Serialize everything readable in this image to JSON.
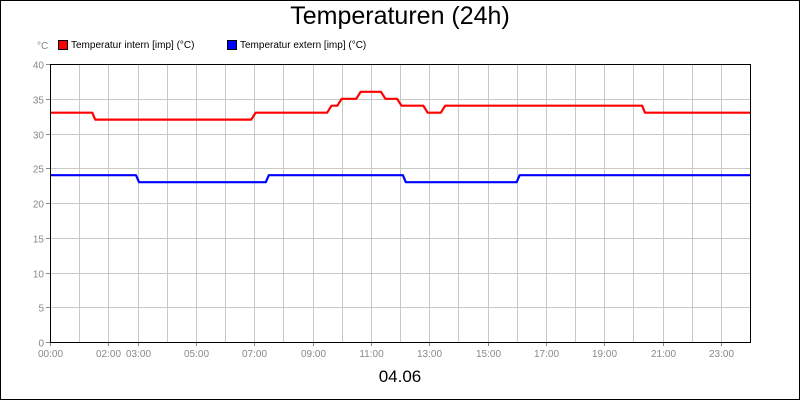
{
  "chart_data": {
    "type": "line",
    "title": "Temperaturen (24h)",
    "y_unit": "°C",
    "date_label": "04.06",
    "ylim": [
      0,
      40
    ],
    "yticks": [
      0,
      5,
      10,
      15,
      20,
      25,
      30,
      35,
      40
    ],
    "xlim_hours": [
      0,
      24
    ],
    "xtick_hours": [
      0,
      2,
      3,
      5,
      7,
      9,
      11,
      13,
      15,
      17,
      19,
      21,
      23
    ],
    "xtick_labels": [
      "00:00",
      "02:00",
      "03:00",
      "05:00",
      "07:00",
      "09:00",
      "11:00",
      "13:00",
      "15:00",
      "17:00",
      "19:00",
      "21:00",
      "23:00"
    ],
    "grid": true,
    "legend_position": "top-left",
    "series": [
      {
        "name": "Temperatur intern [imp] (°C)",
        "color": "#ff0000",
        "x_hours": [
          0,
          1.45,
          1.55,
          6.9,
          7.05,
          9.5,
          9.65,
          9.85,
          10.0,
          10.5,
          10.65,
          11.35,
          11.5,
          11.9,
          12.05,
          12.8,
          12.95,
          13.4,
          13.55,
          20.3,
          20.4,
          24
        ],
        "values": [
          33,
          33,
          32,
          32,
          33,
          33,
          34,
          34,
          35,
          35,
          36,
          36,
          35,
          35,
          34,
          34,
          33,
          33,
          34,
          34,
          33,
          33
        ]
      },
      {
        "name": "Temperatur extern [imp] (°C)",
        "color": "#0000ff",
        "x_hours": [
          0,
          2.95,
          3.05,
          7.4,
          7.5,
          12.1,
          12.2,
          16.0,
          16.1,
          24
        ],
        "values": [
          24,
          24,
          23,
          23,
          24,
          24,
          23,
          23,
          24,
          24
        ]
      }
    ]
  }
}
